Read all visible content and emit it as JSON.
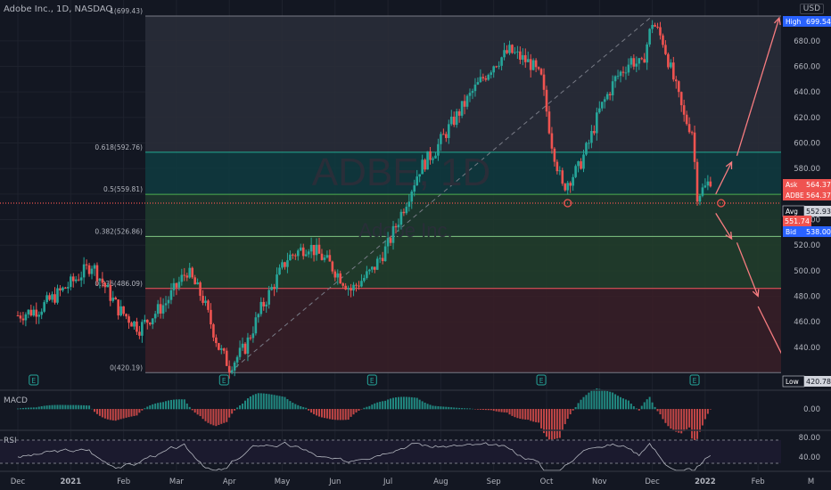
{
  "header": {
    "symbol_line": "Adobe Inc., 1D, NASDAQ",
    "currency": "USD"
  },
  "watermark": {
    "ticker": "ADBE, 1D",
    "name": "Adobe Inc."
  },
  "colors": {
    "up": "#26a69a",
    "down": "#ef5350",
    "bg": "#131722",
    "grid": "#1e222d",
    "text": "#b2b5be"
  },
  "chart_data": {
    "type": "candlestick",
    "symbol": "ADBE",
    "x_ticks": [
      "Dec",
      "2021",
      "Feb",
      "Mar",
      "Apr",
      "May",
      "Jun",
      "Jul",
      "Aug",
      "Sep",
      "Oct",
      "Nov",
      "Dec",
      "2022",
      "Feb",
      "M"
    ],
    "y_ticks": [
      440,
      460,
      480,
      500,
      520,
      540,
      560,
      580,
      600,
      620,
      640,
      660,
      680
    ],
    "ylim": [
      412,
      705
    ],
    "price_path": [
      [
        0,
        465
      ],
      [
        0.4,
        470
      ],
      [
        1,
        490
      ],
      [
        1.4,
        505
      ],
      [
        1.9,
        470
      ],
      [
        2.3,
        455
      ],
      [
        2.8,
        475
      ],
      [
        3.2,
        500
      ],
      [
        3.5,
        478
      ],
      [
        3.8,
        440
      ],
      [
        4.0,
        425
      ],
      [
        4.3,
        440
      ],
      [
        4.6,
        470
      ],
      [
        5.1,
        510
      ],
      [
        5.5,
        520
      ],
      [
        5.9,
        505
      ],
      [
        6.3,
        485
      ],
      [
        6.7,
        500
      ],
      [
        7.0,
        520
      ],
      [
        7.3,
        550
      ],
      [
        7.6,
        580
      ],
      [
        7.9,
        595
      ],
      [
        8.2,
        615
      ],
      [
        8.6,
        640
      ],
      [
        9.0,
        662
      ],
      [
        9.3,
        672
      ],
      [
        9.7,
        662
      ],
      [
        9.9,
        650
      ],
      [
        10.1,
        600
      ],
      [
        10.3,
        565
      ],
      [
        10.6,
        580
      ],
      [
        10.8,
        600
      ],
      [
        11.0,
        625
      ],
      [
        11.3,
        650
      ],
      [
        11.6,
        665
      ],
      [
        11.8,
        660
      ],
      [
        12.0,
        695
      ],
      [
        12.2,
        680
      ],
      [
        12.4,
        650
      ],
      [
        12.6,
        620
      ],
      [
        12.75,
        610
      ],
      [
        12.85,
        560
      ],
      [
        13.0,
        565
      ],
      [
        13.15,
        575
      ]
    ],
    "fib_levels": [
      {
        "label": "1(699.43)",
        "value": 699.43
      },
      {
        "label": "0.618(592.76)",
        "value": 592.76
      },
      {
        "label": "0.5(559.81)",
        "value": 559.81
      },
      {
        "label": "0.382(526.86)",
        "value": 526.86
      },
      {
        "label": "0.236(486.09)",
        "value": 486.09
      },
      {
        "label": "0(420.19)",
        "value": 420.19
      }
    ],
    "price_labels": [
      {
        "tag": "High",
        "value": "699.54",
        "color": "#2962ff"
      },
      {
        "tag": "Ask",
        "value": "564.37",
        "color": "#ef5350"
      },
      {
        "tag": "ADBE",
        "value": "564.37",
        "color": "#ef5350"
      },
      {
        "tag": "Avg",
        "value": "552.93",
        "color": "#131722"
      },
      {
        "tag": "",
        "value": "551.74",
        "color": "#ef5350"
      },
      {
        "tag": "Bid",
        "value": "538.00",
        "color": "#2962ff"
      },
      {
        "tag": "Low",
        "value": "420.78",
        "color": "#131722"
      }
    ],
    "avg_price": 552.93,
    "earnings_marks": [
      "E",
      "E",
      "E",
      "E",
      "E"
    ],
    "earnings_x": [
      0.3,
      3.9,
      6.7,
      9.9,
      12.8
    ],
    "projection_paths": [
      [
        [
          13.2,
          560
        ],
        [
          13.5,
          585
        ]
      ],
      [
        [
          13.2,
          545
        ],
        [
          13.5,
          525
        ]
      ],
      [
        [
          13.6,
          590
        ],
        [
          14.4,
          698
        ]
      ],
      [
        [
          13.6,
          522
        ],
        [
          14.0,
          480
        ]
      ],
      [
        [
          14.0,
          472
        ],
        [
          14.6,
          422
        ]
      ]
    ]
  },
  "macd": {
    "title": "MACD",
    "ticks": [
      "0.00"
    ]
  },
  "rsi": {
    "title": "RSI",
    "ticks": [
      "80.00",
      "40.00"
    ]
  }
}
